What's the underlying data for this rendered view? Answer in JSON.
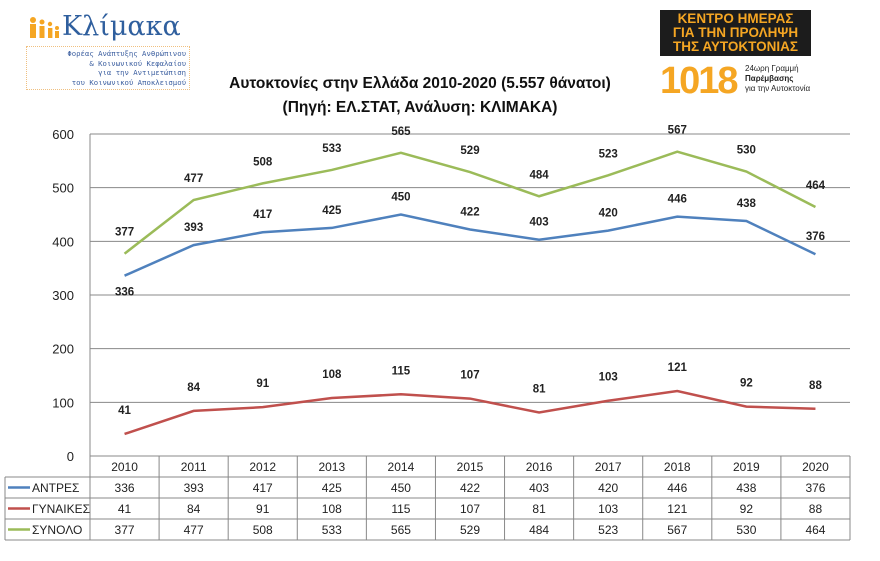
{
  "logo_left": {
    "name": "Κλίμακα",
    "subtitle": [
      "Φορέας Ανάπτυξης Ανθρώπινου",
      "& Κοινωνικού Κεφαλαίου",
      "για την Αντιμετώπιση",
      "του Κοινωνικού Αποκλεισμού"
    ]
  },
  "logo_right": {
    "headline": [
      "ΚΕΝΤΡΟ ΗΜΕΡΑΣ",
      "ΓΙΑ ΤΗΝ ΠΡΟΛΗΨΗ",
      "ΤΗΣ ΑΥΤΟΚΤΟΝΙΑΣ"
    ],
    "number": "1018",
    "tagline": [
      "24ωρη Γραμμή",
      "Παρέμβασης",
      "για την Αυτοκτονία"
    ]
  },
  "chart_data": {
    "type": "line",
    "title": "Αυτοκτονίες στην Ελλάδα 2010-2020 (5.557 θάνατοι)",
    "subtitle": "(Πηγή: ΕΛ.ΣΤΑΤ, Ανάλυση: ΚΛΙΜΑΚΑ)",
    "categories": [
      "2010",
      "2011",
      "2012",
      "2013",
      "2014",
      "2015",
      "2016",
      "2017",
      "2018",
      "2019",
      "2020"
    ],
    "ylim": [
      0,
      600
    ],
    "yticks": [
      0,
      100,
      200,
      300,
      400,
      500,
      600
    ],
    "grid": true,
    "legend": "data-table",
    "series": [
      {
        "name": "ΑΝΤΡΕΣ",
        "color": "#4f81bd",
        "values": [
          336,
          393,
          417,
          425,
          450,
          422,
          403,
          420,
          446,
          438,
          376
        ]
      },
      {
        "name": "ΓΥΝΑΙΚΕΣ",
        "color": "#c0504d",
        "values": [
          41,
          84,
          91,
          108,
          115,
          107,
          81,
          103,
          121,
          92,
          88
        ]
      },
      {
        "name": "ΣΥΝΟΛΟ",
        "color": "#9bbb59",
        "values": [
          377,
          477,
          508,
          533,
          565,
          529,
          484,
          523,
          567,
          530,
          464
        ]
      }
    ]
  }
}
